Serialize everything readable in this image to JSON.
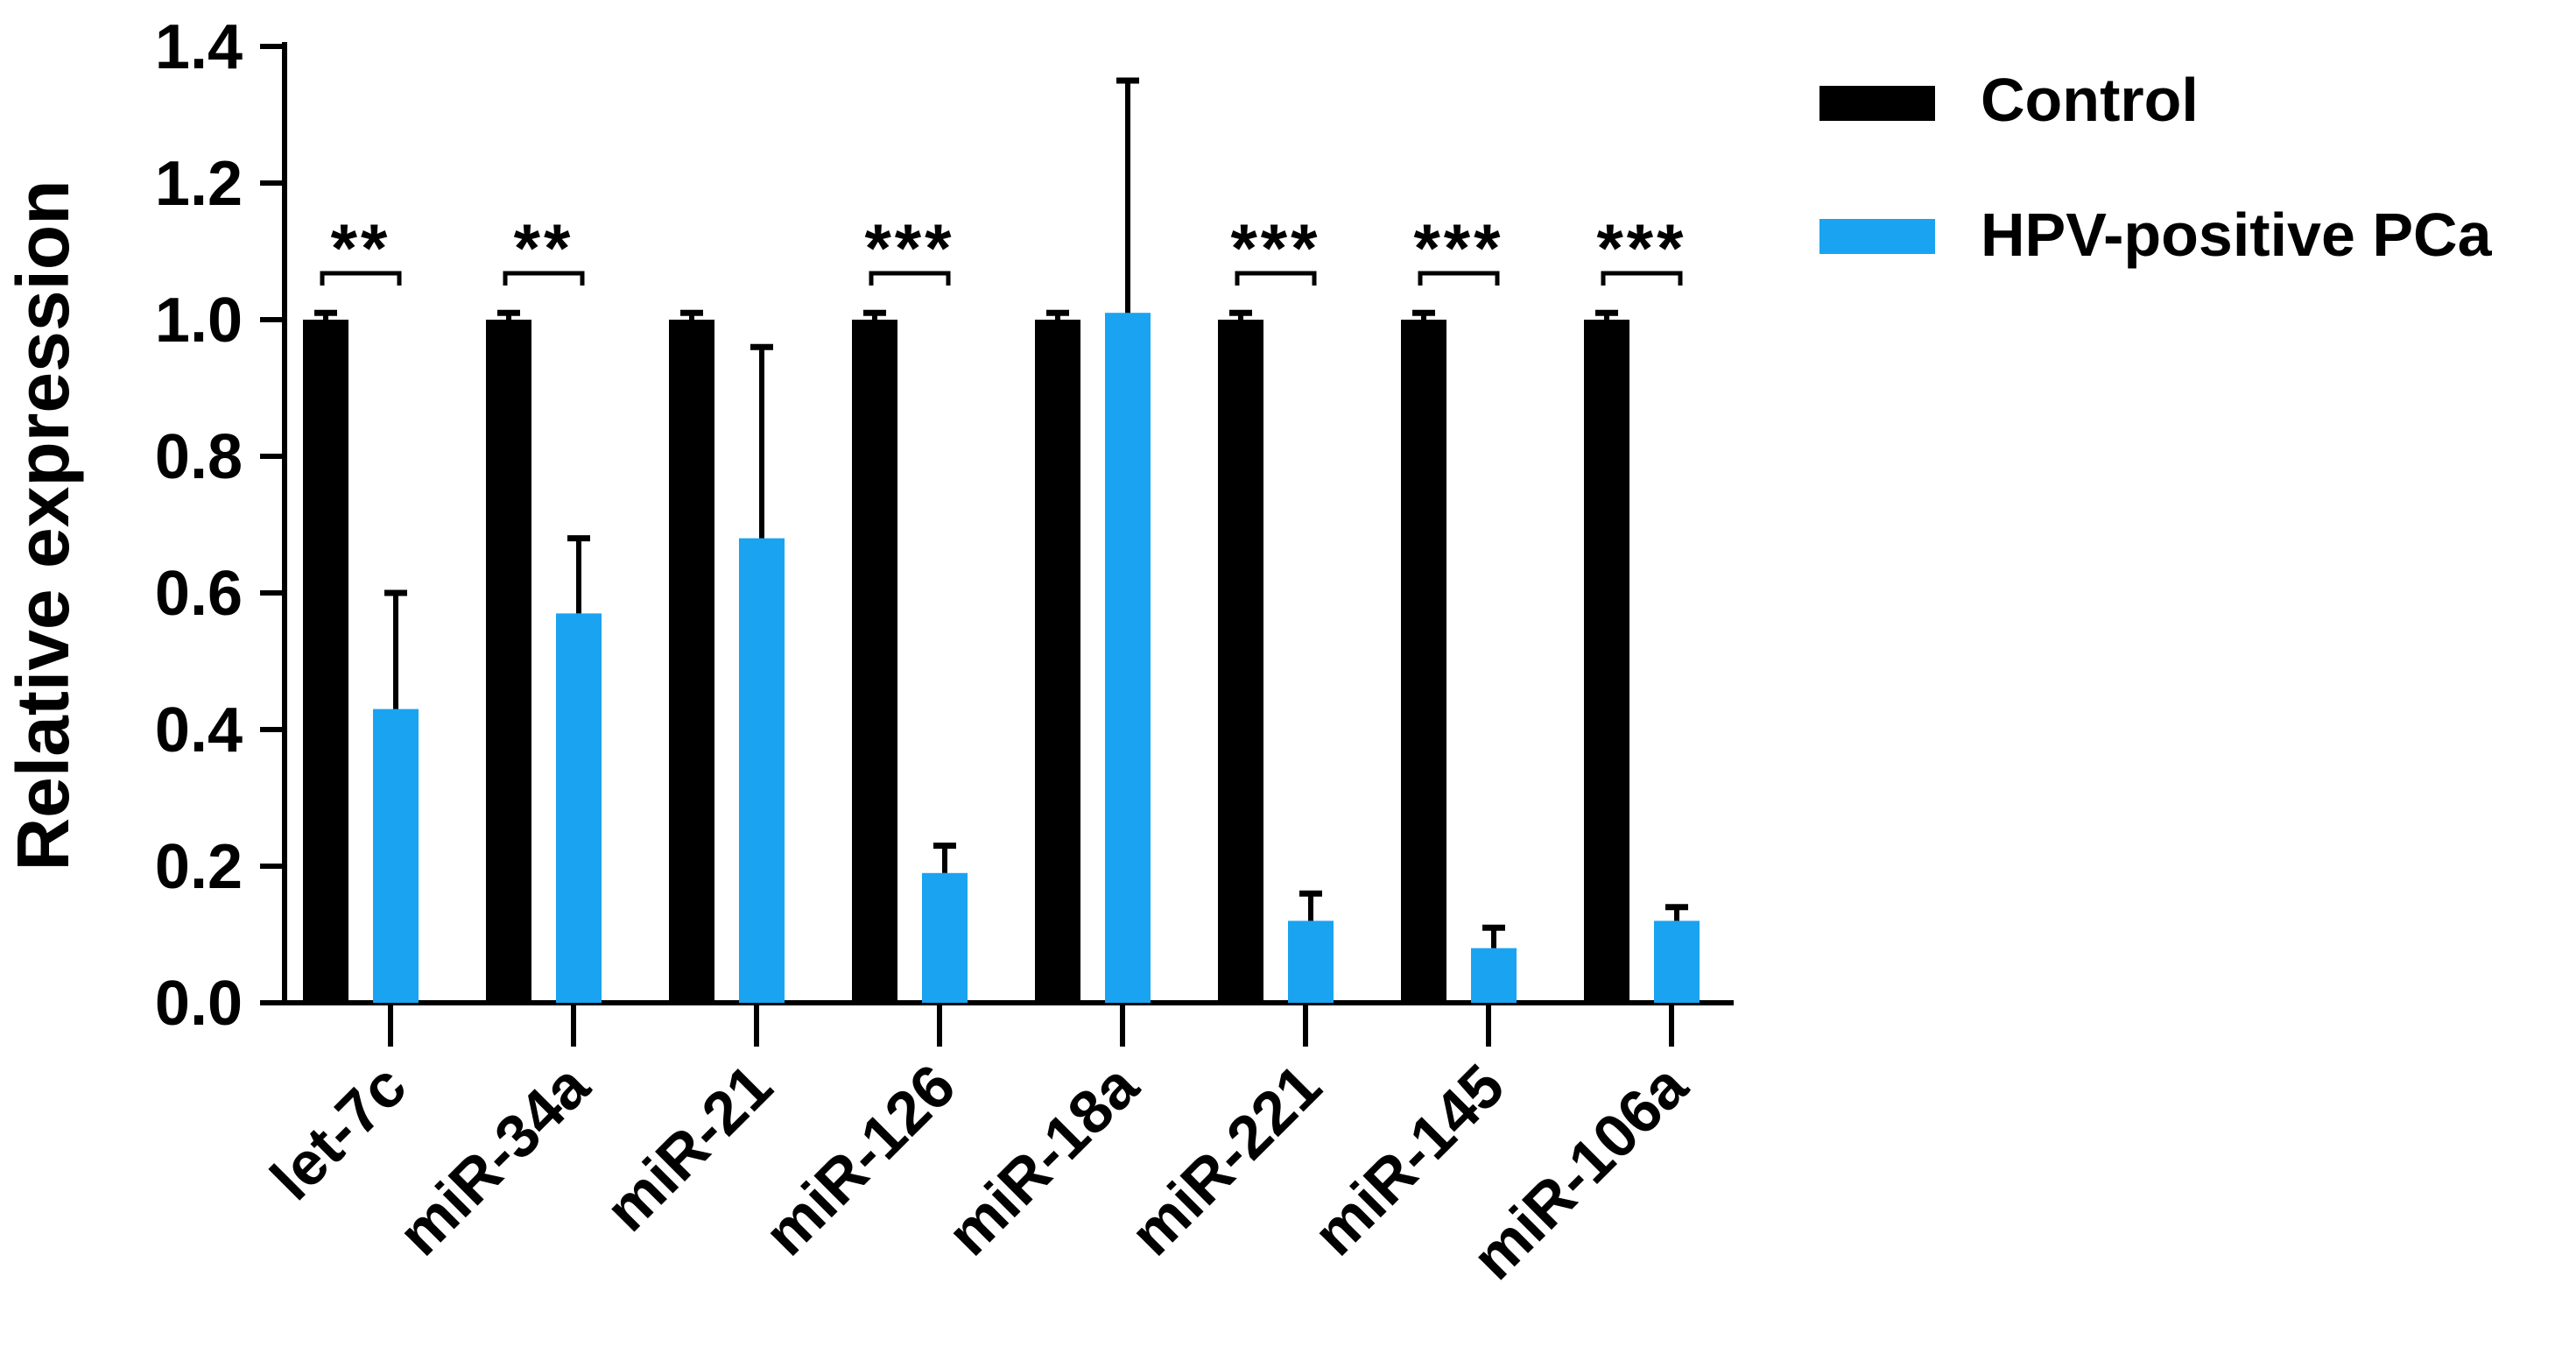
{
  "chart_data": {
    "type": "bar",
    "title": "",
    "xlabel": "",
    "ylabel": "Relative expression",
    "ylim": [
      0,
      1.4
    ],
    "yticks": [
      "0.0",
      "0.2",
      "0.4",
      "0.6",
      "0.8",
      "1.0",
      "1.2",
      "1.4"
    ],
    "grid": false,
    "legend_position": "top-right",
    "categories": [
      "let-7c",
      "miR-34a",
      "miR-21",
      "miR-126",
      "miR-18a",
      "miR-221",
      "miR-145",
      "miR-106a"
    ],
    "series": [
      {
        "name": "Control",
        "color": "#000000",
        "values": [
          1.0,
          1.0,
          1.0,
          1.0,
          1.0,
          1.0,
          1.0,
          1.0
        ],
        "errors": [
          0.01,
          0.01,
          0.01,
          0.01,
          0.01,
          0.01,
          0.01,
          0.01
        ]
      },
      {
        "name": "HPV-positive PCa",
        "color": "#1AA3F0",
        "values": [
          0.43,
          0.57,
          0.68,
          0.19,
          1.01,
          0.12,
          0.08,
          0.12
        ],
        "errors": [
          0.17,
          0.11,
          0.28,
          0.04,
          0.34,
          0.04,
          0.03,
          0.02
        ]
      }
    ],
    "significance": [
      "**",
      "**",
      "",
      "***",
      "",
      "***",
      "***",
      "***"
    ]
  }
}
